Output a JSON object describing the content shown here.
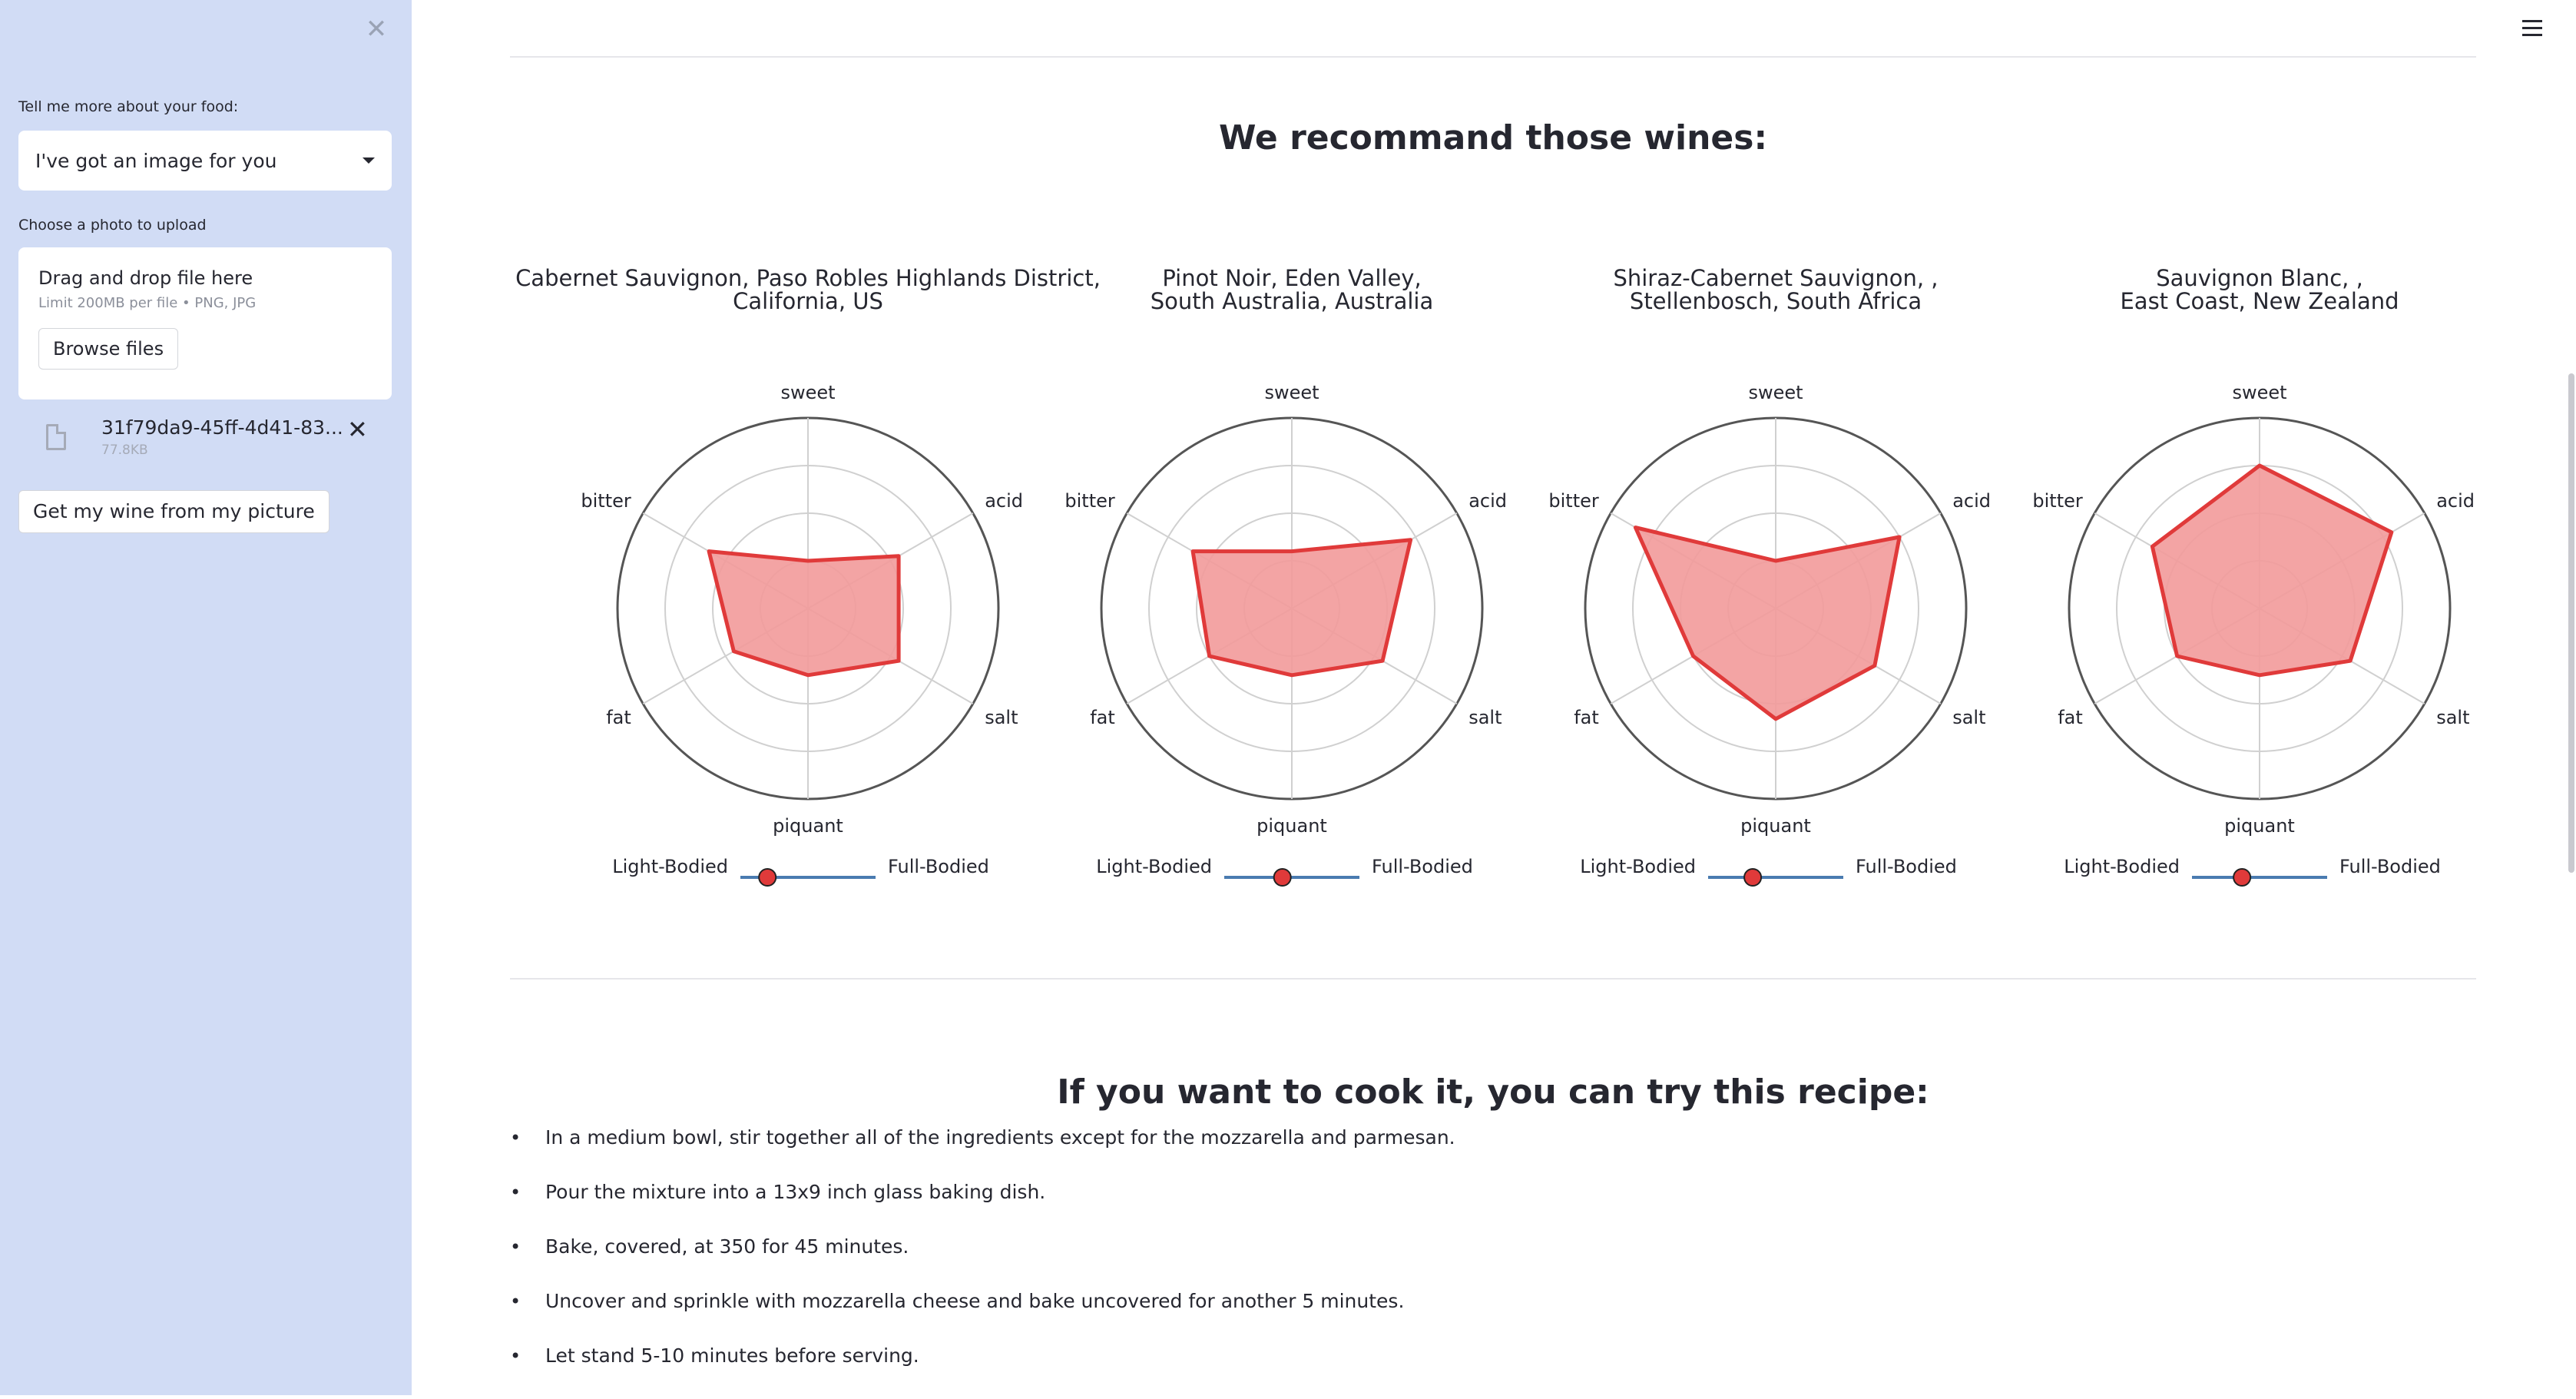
{
  "sidebar": {
    "food_label": "Tell me more about your food:",
    "food_select_value": "I've got an image for you",
    "upload_label": "Choose a photo to upload",
    "dropzone_title": "Drag and drop file here",
    "dropzone_limit": "Limit 200MB per file • PNG, JPG",
    "browse_label": "Browse files",
    "file_name": "31f79da9-45ff-4d41-83...",
    "file_size": "77.8KB",
    "action_button": "Get my wine from my picture"
  },
  "main": {
    "wines_heading": "We recommand those wines:",
    "recipe_heading": "If you want to cook it, you can try this recipe:",
    "recipe_steps": [
      "In a medium bowl, stir together all of the ingredients except for the mozzarella and parmesan.",
      "Pour the mixture into a 13x9 inch glass baking dish.",
      "Bake, covered, at 350 for 45 minutes.",
      "Uncover and sprinkle with mozzarella cheese and bake uncovered for another 5 minutes.",
      "Let stand 5-10 minutes before serving."
    ]
  },
  "colors": {
    "sidebar_bg": "#d1dcf5",
    "radar_fill": "#f29a9a",
    "radar_stroke": "#e03a3a",
    "slider_line": "#4a7bb0",
    "slider_knob": "#e03a3a"
  },
  "chart_data": [
    {
      "type": "radar",
      "title": [
        "Cabernet Sauvignon, Paso Robles Highlands District,",
        "California, US"
      ],
      "axes": [
        "sweet",
        "acid",
        "salt",
        "piquant",
        "fat",
        "bitter"
      ],
      "values": [
        0.25,
        0.55,
        0.55,
        0.35,
        0.45,
        0.6
      ],
      "range": [
        0,
        1
      ],
      "slider": {
        "left_label": "Light-Bodied",
        "right_label": "Full-Bodied",
        "value": 0.2
      }
    },
    {
      "type": "radar",
      "title": [
        "Pinot Noir, Eden Valley,",
        "South Australia, Australia"
      ],
      "axes": [
        "sweet",
        "acid",
        "salt",
        "piquant",
        "fat",
        "bitter"
      ],
      "values": [
        0.3,
        0.72,
        0.55,
        0.35,
        0.5,
        0.6
      ],
      "range": [
        0,
        1
      ],
      "slider": {
        "left_label": "Light-Bodied",
        "right_label": "Full-Bodied",
        "value": 0.43
      }
    },
    {
      "type": "radar",
      "title": [
        "Shiraz-Cabernet Sauvignon, ,",
        "Stellenbosch, South Africa"
      ],
      "axes": [
        "sweet",
        "acid",
        "salt",
        "piquant",
        "fat",
        "bitter"
      ],
      "values": [
        0.25,
        0.75,
        0.6,
        0.58,
        0.5,
        0.85
      ],
      "range": [
        0,
        1
      ],
      "slider": {
        "left_label": "Light-Bodied",
        "right_label": "Full-Bodied",
        "value": 0.33
      }
    },
    {
      "type": "radar",
      "title": [
        "Sauvignon Blanc, ,",
        "East Coast, New Zealand"
      ],
      "axes": [
        "sweet",
        "acid",
        "salt",
        "piquant",
        "fat",
        "bitter"
      ],
      "values": [
        0.75,
        0.8,
        0.55,
        0.35,
        0.5,
        0.65
      ],
      "range": [
        0,
        1
      ],
      "slider": {
        "left_label": "Light-Bodied",
        "right_label": "Full-Bodied",
        "value": 0.37
      }
    }
  ]
}
